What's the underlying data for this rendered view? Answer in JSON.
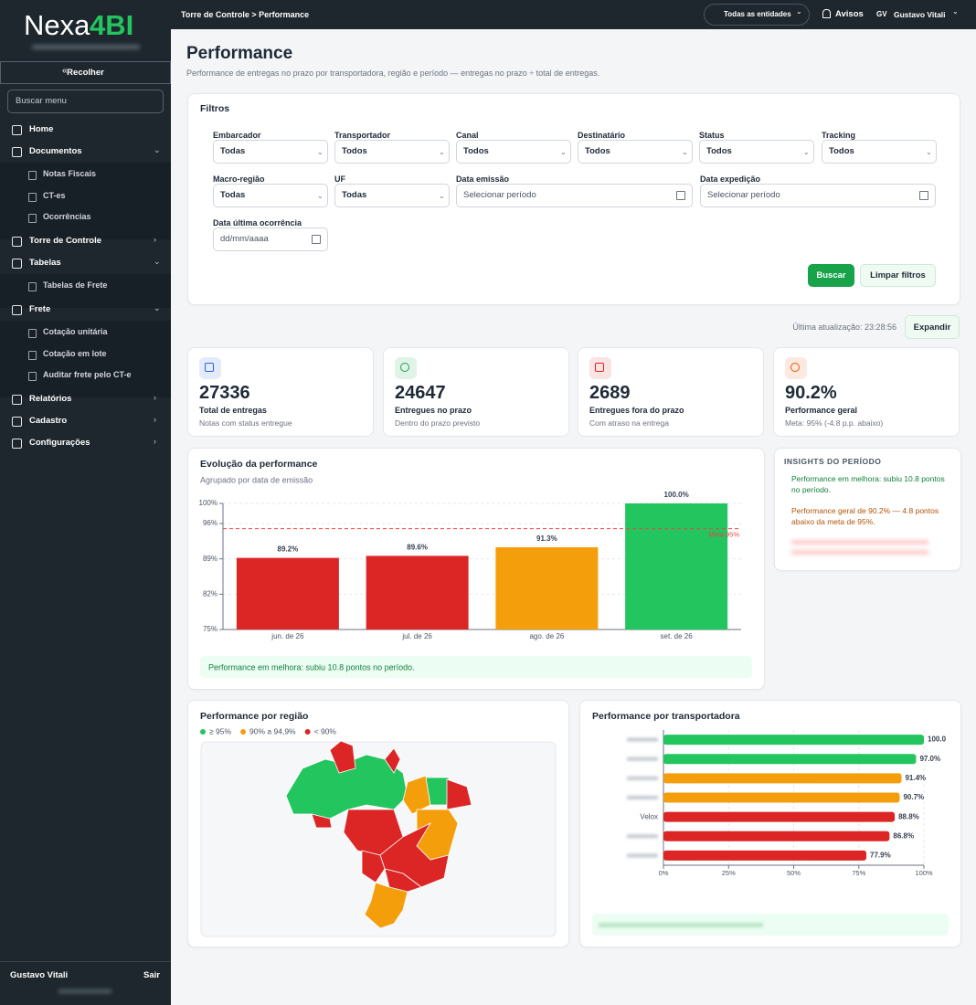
{
  "sidebar": {
    "logo": [
      "Nexa",
      "4BI"
    ],
    "collapse": "Recolher",
    "search_placeholder": "Buscar menu",
    "menu": [
      {
        "label": "Home",
        "expandable": false,
        "children": []
      },
      {
        "label": "Documentos",
        "expandable": true,
        "children": [
          "Notas Fiscais",
          "CT-es",
          "Ocorrências"
        ]
      },
      {
        "label": "Torre de Controle",
        "expandable": true,
        "children": []
      },
      {
        "label": "Tabelas",
        "expandable": true,
        "children": [
          "Tabelas de Frete"
        ]
      },
      {
        "label": "Frete",
        "expandable": true,
        "children": [
          "Cotação unitária",
          "Cotação em lote",
          "Auditar frete pelo CT-e"
        ]
      },
      {
        "label": "Relatórios",
        "expandable": true,
        "children": []
      },
      {
        "label": "Cadastro",
        "expandable": true,
        "children": []
      },
      {
        "label": "Configurações",
        "expandable": true,
        "children": []
      }
    ],
    "user": "Gustavo Vitali",
    "logout": "Sair"
  },
  "topbar": {
    "breadcrumb": "Torre de Controle > Performance",
    "entities": "Todas as entidades",
    "alerts": "Avisos",
    "initials": "GV",
    "user": "Gustavo Vitali"
  },
  "header": {
    "title": "Performance",
    "subtitle": "Performance de entregas no prazo por transportadora, região e período — entregas no prazo ÷ total de entregas."
  },
  "filters": {
    "title": "Filtros",
    "fields": [
      {
        "label": "Embarcador",
        "value": "Todas",
        "kind": "select"
      },
      {
        "label": "Transportador",
        "value": "Todos",
        "kind": "select"
      },
      {
        "label": "Canal",
        "value": "Todos",
        "kind": "select"
      },
      {
        "label": "Destinatário",
        "value": "Todos",
        "kind": "select"
      },
      {
        "label": "Status",
        "value": "Todos",
        "kind": "select"
      },
      {
        "label": "Tracking",
        "value": "Todos",
        "kind": "select"
      },
      {
        "label": "Macro-região",
        "value": "Todas",
        "kind": "select"
      },
      {
        "label": "UF",
        "value": "Todas",
        "kind": "select"
      },
      {
        "label": "Data emissão",
        "value": "Selecionar período",
        "kind": "date"
      },
      {
        "label": "Data expedição",
        "value": "Selecionar período",
        "kind": "date"
      },
      {
        "label": "Data última ocorrência",
        "value": "dd/mm/aaaa",
        "kind": "date"
      }
    ],
    "search": "Buscar",
    "clear": "Limpar filtros"
  },
  "status": {
    "updated": "Última atualização: 23:28:56",
    "expand": "Expandir"
  },
  "kpis": [
    {
      "value": 27336,
      "label": "Total de entregas",
      "note": "Notas com status entregue",
      "color": "#2563eb"
    },
    {
      "value": 24647,
      "label": "Entregues no prazo",
      "note": "Dentro do prazo previsto",
      "color": "#16a34a"
    },
    {
      "value": 2689,
      "label": "Entregues fora do prazo",
      "note": "Com atraso na entrega",
      "color": "#dc2626"
    },
    {
      "value": "90.2%",
      "label": "Performance geral",
      "note": "Meta: 95% (-4.8 p.p. abaixo)",
      "color": "#ea580c"
    }
  ],
  "chart_data": [
    {
      "type": "bar",
      "title": "Evolução da performance",
      "subtitle": "Agrupado por data de emissão",
      "categories": [
        "jun. de 26",
        "jul. de 26",
        "ago. de 26",
        "set. de 26"
      ],
      "values": [
        89.2,
        89.6,
        91.3,
        100.0
      ],
      "value_labels": [
        "89.2%",
        "89.6%",
        "91.3%",
        "100.0%"
      ],
      "colors": [
        "#dc2626",
        "#dc2626",
        "#f59e0b",
        "#22c55e"
      ],
      "ylim": [
        75,
        100
      ],
      "yticks": [
        {
          "value": 75,
          "label": "75%"
        },
        {
          "value": 82,
          "label": "82%"
        },
        {
          "value": 89,
          "label": "89%"
        },
        {
          "value": 96,
          "label": "96%"
        },
        {
          "value": 100,
          "label": "100%"
        }
      ],
      "grid": true,
      "target": {
        "value": 95,
        "label": "Meta 95%",
        "color": "#ef4444"
      },
      "note": "Performance em melhora: subiu 10.8 pontos no período."
    },
    {
      "type": "hbar",
      "title": "Performance por transportadora",
      "categories": [
        null,
        null,
        null,
        null,
        "Velox",
        null,
        null
      ],
      "values": [
        100.0,
        97.0,
        91.4,
        90.7,
        88.8,
        86.8,
        77.9
      ],
      "value_labels": [
        "100.0",
        "97.0%",
        "91.4%",
        "90.7%",
        "88.8%",
        "86.8%",
        "77.9%"
      ],
      "colors": [
        "#22c55e",
        "#22c55e",
        "#f59e0b",
        "#f59e0b",
        "#dc2626",
        "#dc2626",
        "#dc2626"
      ],
      "xlim": [
        0,
        100
      ],
      "xticks": [
        {
          "value": 0,
          "label": "0%"
        },
        {
          "value": 25,
          "label": "25%"
        },
        {
          "value": 50,
          "label": "50%"
        },
        {
          "value": 75,
          "label": "75%"
        },
        {
          "value": 100,
          "label": "100%"
        }
      ],
      "grid": true
    }
  ],
  "insights": {
    "title": "INSIGHTS DO PERÍODO",
    "items": [
      {
        "text": "Performance em melhora: subiu 10.8 pontos no período.",
        "color": "#15803d"
      },
      {
        "text": "Performance geral de 90.2% — 4.8 pontos abaixo da meta de 95%.",
        "color": "#b45309"
      }
    ]
  },
  "region": {
    "title": "Performance por região",
    "legend": [
      {
        "label": "≥ 95%",
        "color": "#22c55e"
      },
      {
        "label": "90% a 94,9%",
        "color": "#f59e0b"
      },
      {
        "label": "< 90%",
        "color": "#dc2626"
      }
    ]
  }
}
